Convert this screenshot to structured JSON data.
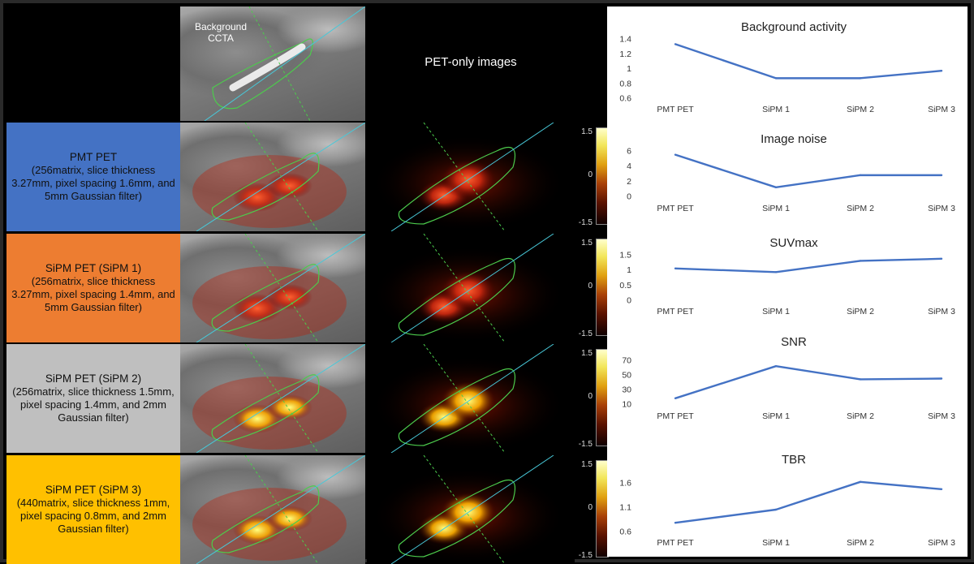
{
  "figure": {
    "left": {
      "top_label": "Background\nCCTA",
      "pet_header": "PET-only images",
      "rows": [
        {
          "id": "pmt",
          "title": "PMT PET",
          "details": "(256matrix, slice thickness 3.27mm, pixel spacing 1.6mm, and 5mm Gaussian filter)",
          "color": "#4472C4"
        },
        {
          "id": "sipm1",
          "title": "SiPM PET (SiPM 1)",
          "details": "(256matrix, slice thickness 3.27mm, pixel spacing 1.4mm, and 5mm Gaussian filter)",
          "color": "#ED7D31"
        },
        {
          "id": "sipm2",
          "title": "SiPM PET (SiPM 2)",
          "details": "(256matrix, slice thickness 1.5mm, pixel spacing 1.4mm, and 2mm Gaussian filter)",
          "color": "#BFBFBF"
        },
        {
          "id": "sipm3",
          "title": "SiPM PET (SiPM 3)",
          "details": "(440matrix, slice thickness 1mm, pixel spacing 0.8mm, and 2mm Gaussian filter)",
          "color": "#FFC000"
        }
      ],
      "colorbar_ticks": [
        "1.5",
        "0",
        "-1.5"
      ]
    }
  },
  "chart_data": [
    {
      "type": "line",
      "title": "Background activity",
      "categories": [
        "PMT PET",
        "SiPM 1",
        "SiPM 2",
        "SiPM 3"
      ],
      "values": [
        1.33,
        0.87,
        0.87,
        0.97
      ],
      "ylim": [
        0.6,
        1.4
      ],
      "yticks": [
        "1.4",
        "1.2",
        "1",
        "0.8",
        "0.6"
      ],
      "ytick_values": [
        1.4,
        1.2,
        1.0,
        0.8,
        0.6
      ],
      "color": "#4472C4"
    },
    {
      "type": "line",
      "title": "Image noise",
      "categories": [
        "PMT PET",
        "SiPM 1",
        "SiPM 2",
        "SiPM 3"
      ],
      "values": [
        5.5,
        1.2,
        2.8,
        2.8
      ],
      "ylim": [
        0,
        6
      ],
      "yticks": [
        "6",
        "4",
        "2",
        "0"
      ],
      "ytick_values": [
        6,
        4,
        2,
        0
      ],
      "color": "#4472C4"
    },
    {
      "type": "line",
      "title": "SUVmax",
      "categories": [
        "PMT PET",
        "SiPM 1",
        "SiPM 2",
        "SiPM 3"
      ],
      "values": [
        1.05,
        0.93,
        1.3,
        1.37
      ],
      "ylim": [
        0,
        1.5
      ],
      "yticks": [
        "1.5",
        "1",
        "0.5",
        "0"
      ],
      "ytick_values": [
        1.5,
        1.0,
        0.5,
        0
      ],
      "color": "#4472C4"
    },
    {
      "type": "line",
      "title": "SNR",
      "categories": [
        "PMT PET",
        "SiPM 1",
        "SiPM 2",
        "SiPM 3"
      ],
      "values": [
        18,
        62,
        44,
        45
      ],
      "ylim": [
        10,
        70
      ],
      "yticks": [
        "70",
        "50",
        "30",
        "10"
      ],
      "ytick_values": [
        70,
        50,
        30,
        10
      ],
      "color": "#4472C4"
    },
    {
      "type": "line",
      "title": "TBR",
      "categories": [
        "PMT PET",
        "SiPM 1",
        "SiPM 2",
        "SiPM 3"
      ],
      "values": [
        0.78,
        1.05,
        1.62,
        1.47
      ],
      "ylim": [
        0.6,
        1.8
      ],
      "yticks": [
        "1.6",
        "1.1",
        "0.6"
      ],
      "ytick_values": [
        1.6,
        1.1,
        0.6
      ],
      "color": "#4472C4"
    }
  ]
}
